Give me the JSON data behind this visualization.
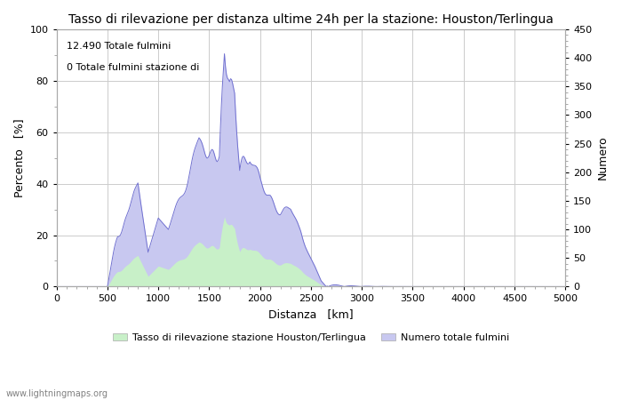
{
  "title": "Tasso di rilevazione per distanza ultime 24h per la stazione: Houston/Terlingua",
  "xlabel": "Distanza   [km]",
  "ylabel_left": "Percento   [%]",
  "ylabel_right": "Numero",
  "annotation_line1": "12.490 Totale fulmini",
  "annotation_line2": "0 Totale fulmini stazione di",
  "legend_label1": "Tasso di rilevazione stazione Houston/Terlingua",
  "legend_label2": "Numero totale fulmini",
  "watermark": "www.lightningmaps.org",
  "xlim": [
    0,
    5000
  ],
  "ylim_left": [
    0,
    100
  ],
  "ylim_right": [
    0,
    450
  ],
  "xticks": [
    0,
    500,
    1000,
    1500,
    2000,
    2500,
    3000,
    3500,
    4000,
    4500,
    5000
  ],
  "yticks_left": [
    0,
    20,
    40,
    60,
    80,
    100
  ],
  "yticks_right": [
    0,
    50,
    100,
    150,
    200,
    250,
    300,
    350,
    400,
    450
  ],
  "background_color": "#ffffff",
  "grid_color": "#cccccc",
  "fill_color_detection": "#c8f0c8",
  "fill_color_total": "#c8c8f0",
  "line_color_total": "#7070d0",
  "line_color_detection": "#80c080",
  "title_fontsize": 10,
  "axis_fontsize": 9,
  "tick_fontsize": 8,
  "annot_fontsize": 8,
  "legend_fontsize": 8,
  "watermark_fontsize": 7
}
